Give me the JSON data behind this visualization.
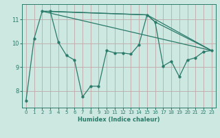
{
  "xlabel": "Humidex (Indice chaleur)",
  "background_color": "#cce8e0",
  "line_color": "#2a7a6a",
  "grid_color": "#c0a8a8",
  "xlim": [
    -0.5,
    23.5
  ],
  "ylim": [
    7.3,
    11.65
  ],
  "yticks": [
    8,
    9,
    10,
    11
  ],
  "xticks": [
    0,
    1,
    2,
    3,
    4,
    5,
    6,
    7,
    8,
    9,
    10,
    11,
    12,
    13,
    14,
    15,
    16,
    17,
    18,
    19,
    20,
    21,
    22,
    23
  ],
  "lines": [
    {
      "x": [
        0,
        1,
        2,
        3,
        4,
        5,
        6,
        7,
        8,
        9,
        10,
        11,
        12,
        13,
        14,
        15,
        16,
        17,
        18,
        19,
        20,
        21,
        22,
        23
      ],
      "y": [
        7.6,
        10.2,
        11.35,
        11.35,
        10.05,
        9.5,
        9.3,
        7.75,
        8.2,
        8.2,
        9.7,
        9.6,
        9.6,
        9.55,
        9.95,
        11.2,
        10.9,
        9.05,
        9.25,
        8.6,
        9.3,
        9.4,
        9.65,
        9.7
      ],
      "markers": true
    },
    {
      "x": [
        2,
        23
      ],
      "y": [
        11.35,
        9.7
      ],
      "markers": false
    },
    {
      "x": [
        2,
        15,
        23
      ],
      "y": [
        11.35,
        11.2,
        9.7
      ],
      "markers": false
    },
    {
      "comment": "third diagonal from (3,11.35) through (15,11.2),(16,10.9) to (23,9.7)",
      "x": [
        3,
        15,
        16,
        23
      ],
      "y": [
        11.35,
        11.2,
        10.9,
        9.7
      ],
      "markers": false
    }
  ]
}
